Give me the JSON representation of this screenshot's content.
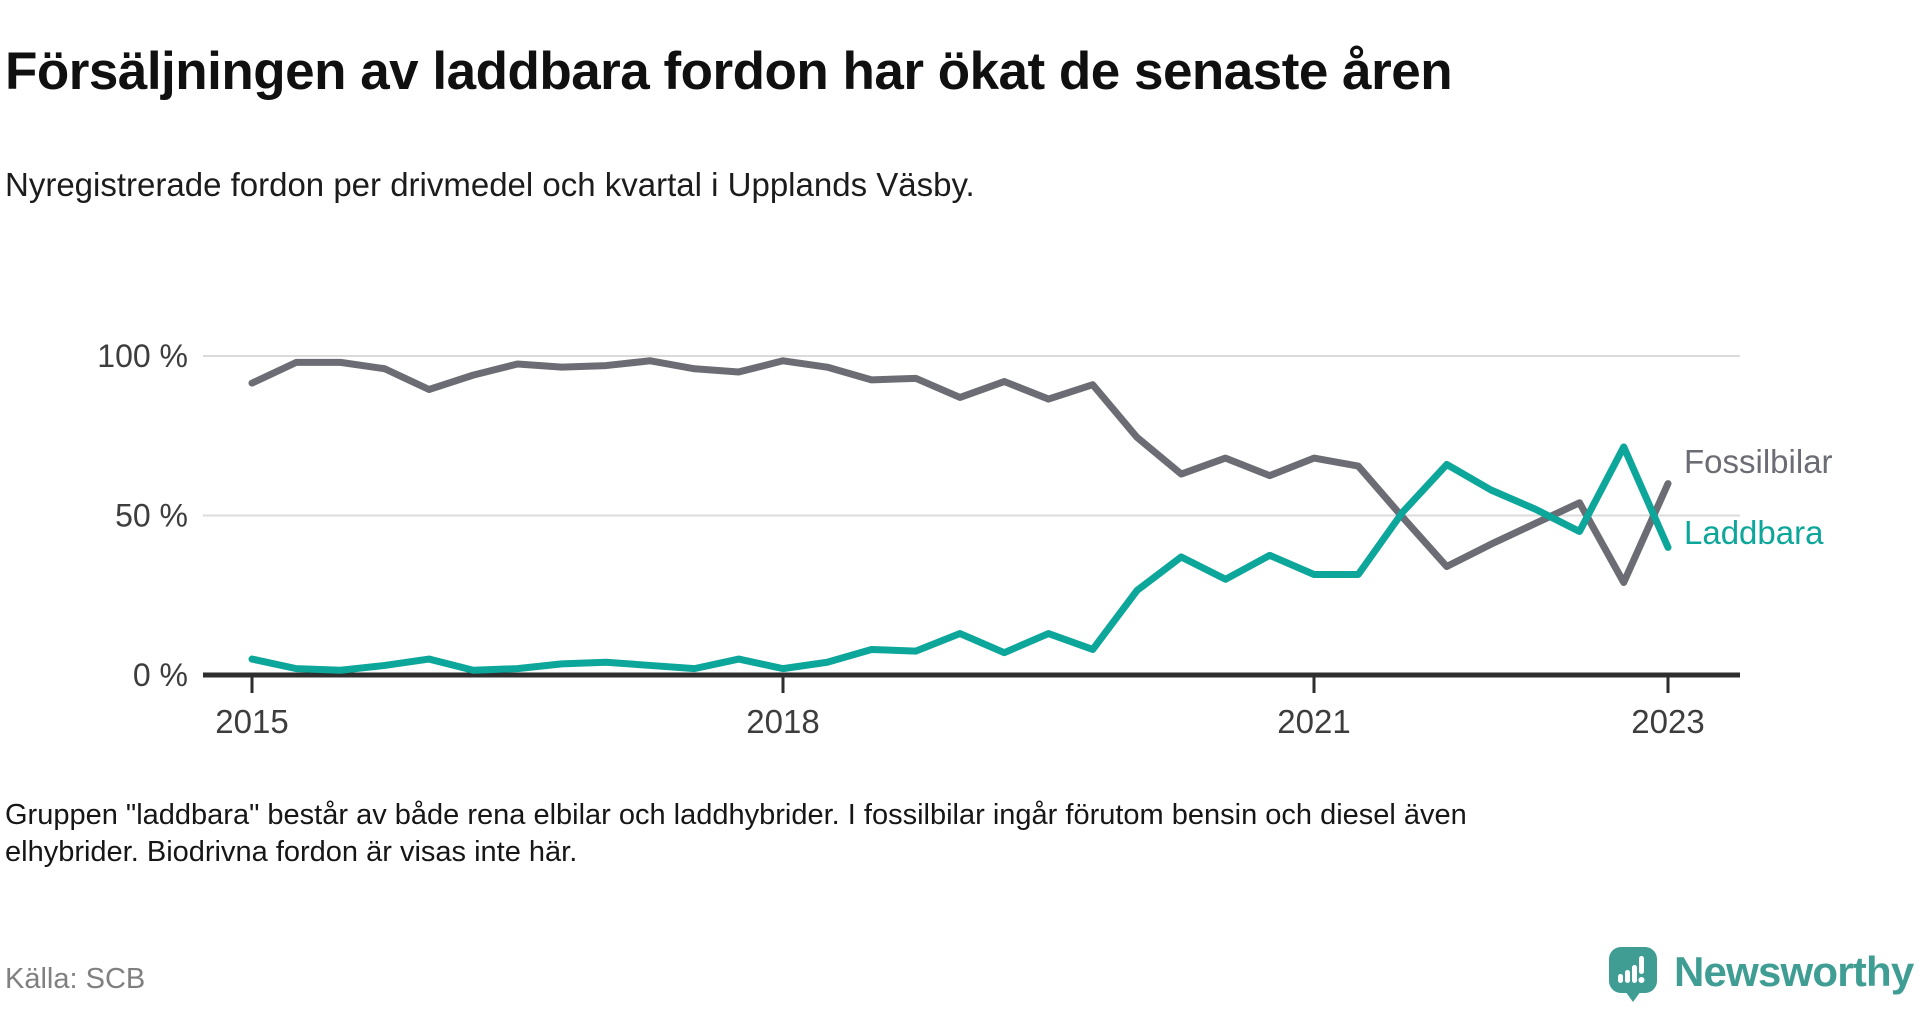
{
  "header": {
    "title": "Försäljningen av laddbara fordon har ökat de senaste åren",
    "subtitle": "Nyregistrerade fordon per drivmedel och kvartal i Upplands Väsby."
  },
  "footer": {
    "note_lines": [
      "Gruppen \"laddbara\" består av både rena elbilar och laddhybrider. I fossilbilar ingår förutom bensin och diesel även",
      "elhybrider. Biodrivna fordon är visas inte här."
    ],
    "source": "Källa: SCB",
    "brand": "Newsworthy"
  },
  "colors": {
    "fossil": "#6C6C75",
    "laddbara": "#0DA69A",
    "axis": "#2E2E2E",
    "gridline": "#DBDBDB",
    "tick_label": "#3D3D3D",
    "logo": "#3F9D94"
  },
  "chart_data": {
    "type": "line",
    "unit": "%",
    "title": "Försäljningen av laddbara fordon har ökat de senaste åren",
    "subtitle": "Nyregistrerade fordon per drivmedel och kvartal i Upplands Väsby.",
    "xlabel": "",
    "ylabel": "",
    "ylim": [
      0,
      100
    ],
    "grid": "horizontal-gridlines",
    "legend_position": "labels-at-line-end-right",
    "x": [
      "2015 Q1",
      "2015 Q2",
      "2015 Q3",
      "2015 Q4",
      "2016 Q1",
      "2016 Q2",
      "2016 Q3",
      "2016 Q4",
      "2017 Q1",
      "2017 Q2",
      "2017 Q3",
      "2017 Q4",
      "2018 Q1",
      "2018 Q2",
      "2018 Q3",
      "2018 Q4",
      "2019 Q1",
      "2019 Q2",
      "2019 Q3",
      "2019 Q4",
      "2020 Q1",
      "2020 Q2",
      "2020 Q3",
      "2020 Q4",
      "2021 Q1",
      "2021 Q2",
      "2021 Q3",
      "2021 Q4",
      "2022 Q1",
      "2022 Q2",
      "2022 Q3",
      "2022 Q4",
      "2023 Q1"
    ],
    "x_ticks": [
      {
        "index": 0,
        "label": "2015"
      },
      {
        "index": 12,
        "label": "2018"
      },
      {
        "index": 24,
        "label": "2021"
      },
      {
        "index": 32,
        "label": "2023"
      }
    ],
    "y_ticks": [
      {
        "value": 0,
        "label": "0 %"
      },
      {
        "value": 50,
        "label": "50 %"
      },
      {
        "value": 100,
        "label": "100 %"
      }
    ],
    "series": [
      {
        "name": "Fossilbilar",
        "color": "#6C6C75",
        "values": [
          91.5,
          98,
          98,
          96,
          89.5,
          94,
          97.5,
          96.5,
          97,
          98.5,
          96,
          95,
          98.5,
          96.5,
          92.5,
          93,
          87,
          92,
          86.5,
          91,
          74.5,
          63,
          68,
          62.5,
          68,
          65.5,
          49.5,
          34,
          41,
          47.5,
          54,
          29,
          60
        ]
      },
      {
        "name": "Laddbara",
        "color": "#0DA69A",
        "values": [
          5,
          2,
          1.5,
          3,
          5,
          1.5,
          2,
          3.5,
          4,
          3,
          2,
          5,
          2,
          4,
          8,
          7.5,
          13,
          7,
          13,
          8,
          26.5,
          37,
          30,
          37.5,
          31.5,
          31.5,
          51,
          66,
          58,
          52,
          45,
          71.5,
          40
        ]
      }
    ]
  }
}
